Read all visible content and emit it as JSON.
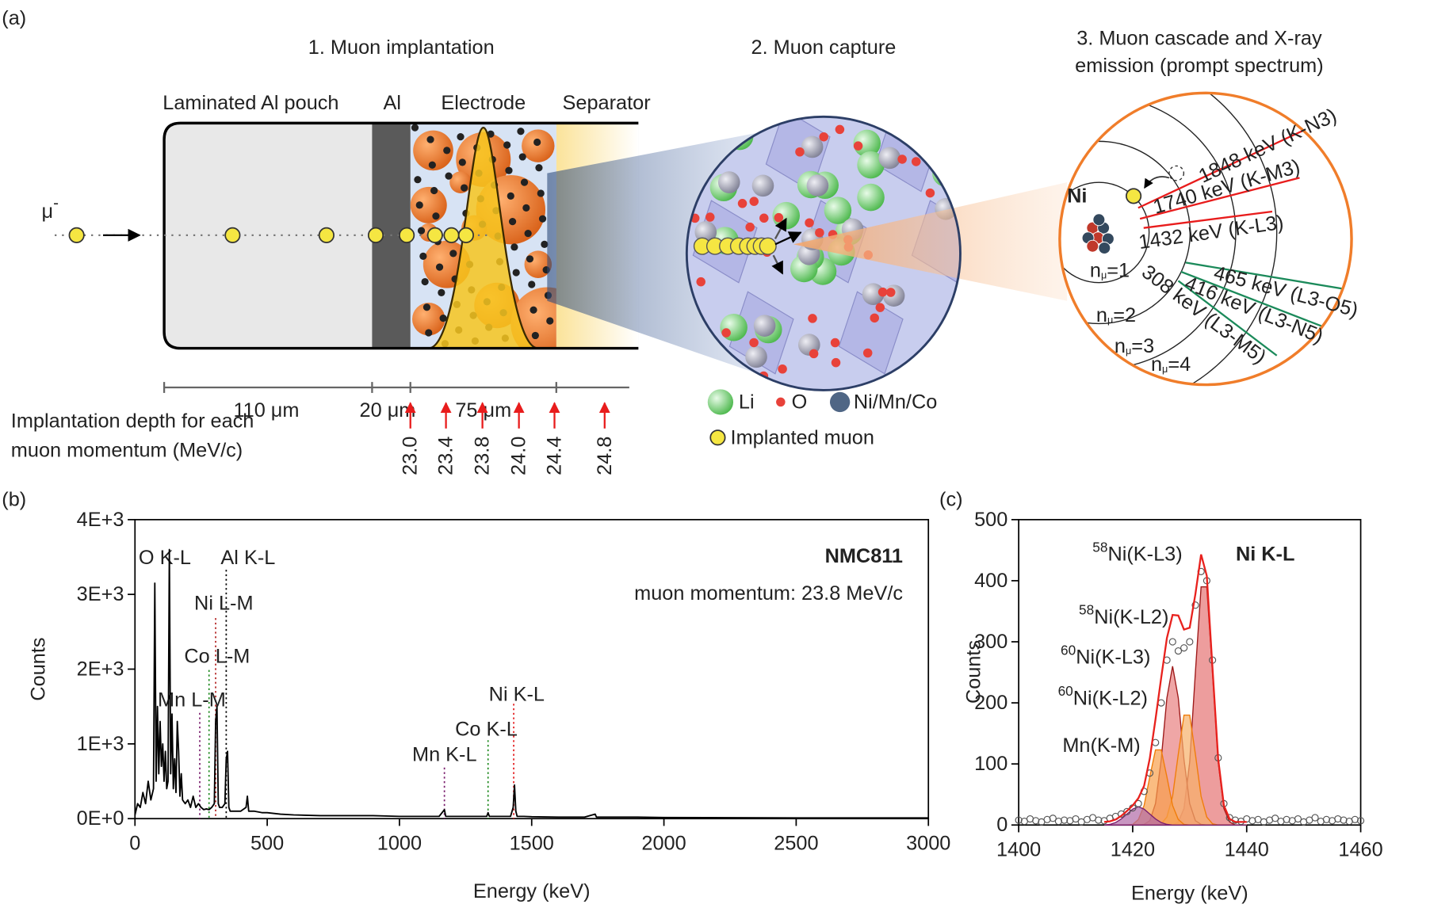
{
  "panel_a": {
    "label": "(a)",
    "step1": "1. Muon implantation",
    "step2": "2. Muon capture",
    "step3": [
      "3. Muon cascade and X-ray",
      "emission (prompt spectrum)"
    ],
    "layers": [
      "Laminated Al pouch",
      "Al",
      "Electrode",
      "Separator"
    ],
    "muon": {
      "symbol": "μ",
      "charge": "-"
    },
    "thickness": [
      "110 μm",
      "20 μm",
      "75 μm"
    ],
    "depth_note": [
      "Implantation depth for each",
      "muon momentum (MeV/c)"
    ],
    "momenta": [
      "23.0",
      "23.4",
      "23.8",
      "24.0",
      "24.4",
      "24.8"
    ],
    "legend": [
      "Li",
      "O",
      "Ni/Mn/Co",
      "Implanted muon"
    ],
    "atom": "Ni",
    "transitions": [
      "1848 keV (K-N3)",
      "1740 keV (K-M3)",
      "1432 keV (K-L3)",
      "465 keV (L3-O5)",
      "416 keV (L3-N5)",
      "308 keV (L3-M5)"
    ],
    "shells": [
      {
        "n": "n",
        "sub": "μ",
        "eq": "=1"
      },
      {
        "n": "n",
        "sub": "μ",
        "eq": "=2"
      },
      {
        "n": "n",
        "sub": "μ",
        "eq": "=3"
      },
      {
        "n": "n",
        "sub": "μ",
        "eq": "=4"
      }
    ]
  },
  "chart_data": [
    {
      "type": "line",
      "panel": "(b)",
      "title": "NMC811",
      "subtitle": "muon momentum: 23.8 MeV/c",
      "x_label": "Energy (keV)",
      "y_label": "Counts",
      "xlim": [
        0,
        3000
      ],
      "ylim": [
        0,
        4000
      ],
      "xticks": [
        0,
        500,
        1000,
        1500,
        2000,
        2500,
        3000
      ],
      "yticks": [
        {
          "value": 0,
          "label": "0E+0"
        },
        {
          "value": 1000,
          "label": "1E+3"
        },
        {
          "value": 2000,
          "label": "2E+3"
        },
        {
          "value": 3000,
          "label": "3E+3"
        },
        {
          "value": 4000,
          "label": "4E+3"
        }
      ],
      "x": [
        0,
        10,
        20,
        30,
        40,
        50,
        60,
        70,
        75,
        80,
        85,
        90,
        95,
        100,
        105,
        110,
        115,
        120,
        125,
        130,
        135,
        140,
        145,
        150,
        155,
        160,
        165,
        170,
        175,
        180,
        190,
        200,
        210,
        220,
        230,
        240,
        250,
        260,
        270,
        280,
        290,
        300,
        305,
        310,
        315,
        320,
        330,
        340,
        345,
        350,
        355,
        360,
        380,
        400,
        420,
        425,
        430,
        450,
        480,
        500,
        550,
        600,
        700,
        800,
        900,
        1000,
        1100,
        1150,
        1170,
        1175,
        1180,
        1200,
        1300,
        1330,
        1335,
        1340,
        1350,
        1400,
        1420,
        1430,
        1435,
        1440,
        1445,
        1450,
        1470,
        1500,
        1600,
        1700,
        1740,
        1745,
        1750,
        1800,
        1900,
        2000,
        2500,
        3000
      ],
      "series": [
        {
          "color": "#000000",
          "values": [
            50,
            200,
            150,
            350,
            200,
            500,
            250,
            400,
            3150,
            500,
            1500,
            600,
            1300,
            700,
            1000,
            500,
            900,
            400,
            500,
            3600,
            600,
            1400,
            400,
            800,
            350,
            1300,
            900,
            300,
            600,
            250,
            200,
            250,
            150,
            300,
            150,
            200,
            150,
            120,
            130,
            120,
            150,
            200,
            1300,
            1500,
            200,
            150,
            150,
            200,
            800,
            900,
            150,
            100,
            100,
            100,
            150,
            300,
            100,
            100,
            80,
            80,
            60,
            50,
            40,
            40,
            40,
            30,
            30,
            30,
            120,
            30,
            30,
            30,
            30,
            30,
            80,
            30,
            30,
            30,
            30,
            150,
            450,
            100,
            30,
            30,
            30,
            25,
            20,
            20,
            60,
            20,
            20,
            20,
            20,
            15,
            10,
            10
          ]
        }
      ],
      "annotations": [
        {
          "text": "O K-L",
          "color": "#000000"
        },
        {
          "text": "Al K-L",
          "color": "#000000",
          "x": 345
        },
        {
          "text": "Ni L-M",
          "color": "#b22222",
          "x": 305
        },
        {
          "text": "Co L-M",
          "color": "#228b22",
          "x": 280
        },
        {
          "text": "Mn L-M",
          "color": "#7b1f6e",
          "x": 245
        },
        {
          "text": "Ni K-L",
          "color": "#e31a1c",
          "x": 1432
        },
        {
          "text": "Co K-L",
          "color": "#228b22",
          "x": 1335
        },
        {
          "text": "Mn K-L",
          "color": "#7b1f6e",
          "x": 1170
        }
      ]
    },
    {
      "type": "scatter",
      "panel": "(c)",
      "title": "Ni K-L",
      "x_label": "Energy (keV)",
      "y_label": "Counts",
      "xlim": [
        1400,
        1460
      ],
      "ylim": [
        0,
        500
      ],
      "xticks": [
        1400,
        1420,
        1440,
        1460
      ],
      "yticks": [
        0,
        100,
        200,
        300,
        400,
        500
      ],
      "marker_color": "#555555",
      "x": [
        1400,
        1401,
        1402,
        1403,
        1404,
        1405,
        1406,
        1407,
        1408,
        1409,
        1410,
        1411,
        1412,
        1413,
        1414,
        1415,
        1416,
        1417,
        1418,
        1419,
        1420,
        1421,
        1422,
        1423,
        1424,
        1425,
        1426,
        1427,
        1428,
        1429,
        1430,
        1431,
        1432,
        1433,
        1434,
        1435,
        1436,
        1437,
        1438,
        1439,
        1440,
        1441,
        1442,
        1443,
        1444,
        1445,
        1446,
        1447,
        1448,
        1449,
        1450,
        1451,
        1452,
        1453,
        1454,
        1455,
        1456,
        1457,
        1458,
        1459,
        1460
      ],
      "values": [
        8,
        6,
        10,
        7,
        5,
        9,
        11,
        6,
        8,
        7,
        10,
        5,
        9,
        12,
        8,
        7,
        11,
        14,
        18,
        22,
        28,
        35,
        55,
        85,
        135,
        200,
        270,
        300,
        285,
        290,
        300,
        360,
        415,
        400,
        270,
        110,
        35,
        12,
        8,
        6,
        10,
        7,
        9,
        5,
        8,
        11,
        6,
        9,
        7,
        10,
        5,
        8,
        12,
        6,
        9,
        7,
        10,
        8,
        6,
        9,
        7
      ],
      "fit_x": [
        1415,
        1416,
        1417,
        1418,
        1419,
        1420,
        1421,
        1422,
        1423,
        1424,
        1425,
        1426,
        1427,
        1428,
        1429,
        1430,
        1431,
        1432,
        1433,
        1434,
        1435,
        1436,
        1437,
        1438,
        1439,
        1440
      ],
      "fit": {
        "color": "#e8211d",
        "values": [
          5,
          6,
          9,
          15,
          23,
          32,
          44,
          64,
          109,
          173,
          241,
          306,
          344,
          343,
          320,
          323,
          378,
          443,
          408,
          257,
          108,
          32,
          10,
          5,
          5,
          5
        ]
      },
      "components": [
        {
          "isotope": "58",
          "name": "Ni(K-L3)",
          "color": "#9e1b1b",
          "fill": "#e57373",
          "values": [
            0,
            0,
            0,
            0,
            0,
            0,
            0,
            0,
            0,
            0,
            0,
            0,
            0,
            5,
            27,
            103,
            250,
            390,
            390,
            250,
            103,
            27,
            5,
            0,
            0,
            0
          ]
        },
        {
          "isotope": "58",
          "name": "Ni(K-L2)",
          "color": "#9e1b1b",
          "fill": "#e88080",
          "values": [
            0,
            0,
            0,
            0,
            0,
            0,
            0,
            1,
            7,
            35,
            107,
            208,
            260,
            208,
            107,
            35,
            7,
            1,
            0,
            0,
            0,
            0,
            0,
            0,
            0,
            0
          ]
        },
        {
          "isotope": "60",
          "name": "Ni(K-L3)",
          "color": "#f07d0a",
          "fill": "#f6b06a",
          "values": [
            0,
            0,
            0,
            0,
            0,
            0,
            0,
            0,
            0,
            0,
            2,
            13,
            47,
            116,
            180,
            180,
            116,
            47,
            13,
            2,
            0,
            0,
            0,
            0,
            0,
            0
          ]
        },
        {
          "isotope": "60",
          "name": "Ni(K-L2)",
          "color": "#f07d0a",
          "fill": "#f8a04c",
          "values": [
            0,
            0,
            0,
            0,
            0,
            1,
            9,
            32,
            79,
            123,
            123,
            79,
            32,
            9,
            1,
            0,
            0,
            0,
            0,
            0,
            0,
            0,
            0,
            0,
            0,
            0
          ]
        },
        {
          "name": "Mn(K-M)",
          "color": "#7b1f6e",
          "fill": "#b06aa6",
          "values": [
            0,
            1,
            4,
            10,
            18,
            26,
            30,
            26,
            18,
            10,
            4,
            1,
            0,
            0,
            0,
            0,
            0,
            0,
            0,
            0,
            0,
            0,
            0,
            0,
            0,
            0
          ]
        }
      ]
    }
  ]
}
